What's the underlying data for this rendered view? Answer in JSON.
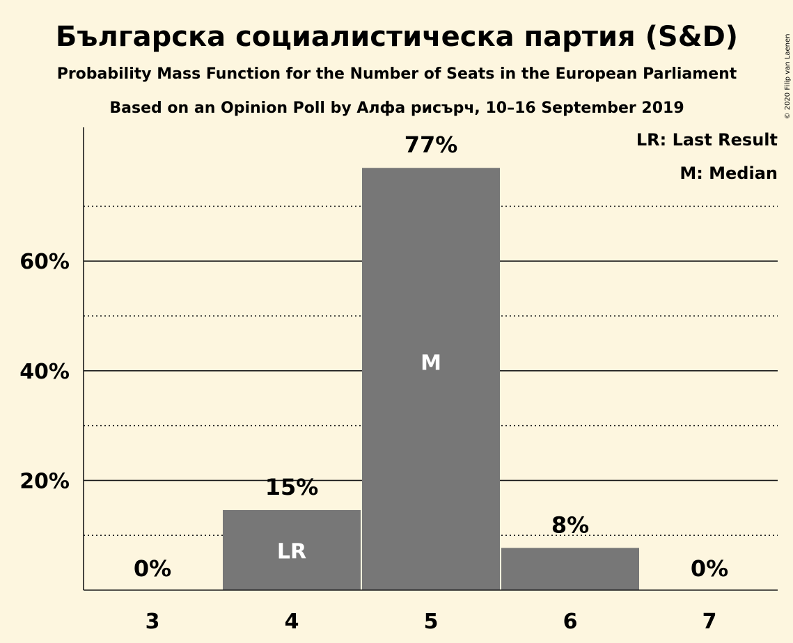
{
  "title": "Българска социалистическа партия (S&D)",
  "subtitle1": "Probability Mass Function for the Number of Seats in the European Parliament",
  "subtitle2": "Based on an Opinion Poll by Алфа рисърч, 10–16 September 2019",
  "copyright": "© 2020 Filip van Laenen",
  "legend": {
    "last_result": "LR: Last Result",
    "median": "M: Median"
  },
  "colors": {
    "background": "#fdf6df",
    "bar": "#777777",
    "text": "#1a1a1a"
  },
  "chart_data": {
    "type": "bar",
    "categories": [
      "3",
      "4",
      "5",
      "6",
      "7"
    ],
    "values": [
      0,
      14.6,
      77.0,
      7.7,
      0
    ],
    "data_labels": [
      "0%",
      "15%",
      "77%",
      "8%",
      "0%"
    ],
    "bar_annotations": [
      "",
      "LR",
      "M",
      "",
      ""
    ],
    "title": "Българска социалистическа партия (S&D)",
    "xlabel": "",
    "ylabel": "",
    "ylim": [
      0,
      84
    ],
    "yticks": [
      20,
      40,
      60
    ],
    "ytick_labels": [
      "20%",
      "40%",
      "60%"
    ],
    "minor_gridlines": [
      10,
      30,
      50,
      70
    ],
    "grid": true,
    "legend_position": "top-right"
  }
}
